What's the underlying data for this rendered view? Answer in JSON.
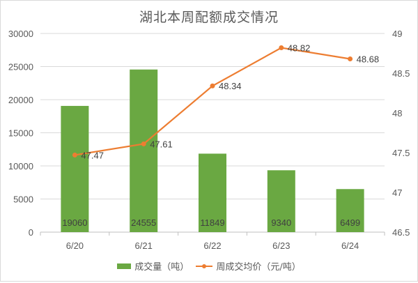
{
  "chart_data": {
    "type": "bar+line",
    "title": "湖北本周配额成交情况",
    "categories": [
      "6/20",
      "6/21",
      "6/22",
      "6/23",
      "6/24"
    ],
    "series": [
      {
        "name": "成交量（吨）",
        "type": "bar",
        "axis": "left",
        "color": "#6aa842",
        "values": [
          19060,
          24555,
          11849,
          9340,
          6499
        ]
      },
      {
        "name": "周成交均价（元/吨）",
        "type": "line",
        "axis": "right",
        "color": "#ed7d31",
        "values": [
          47.47,
          47.61,
          48.34,
          48.82,
          48.68
        ]
      }
    ],
    "left_axis": {
      "ylim": [
        0,
        30000
      ],
      "ticks": [
        0,
        5000,
        10000,
        15000,
        20000,
        25000,
        30000
      ]
    },
    "right_axis": {
      "ylim": [
        46.5,
        49
      ],
      "ticks": [
        46.5,
        47,
        47.5,
        48,
        48.5,
        49
      ]
    },
    "grid": true,
    "legend_position": "bottom"
  },
  "labels": {
    "title": "湖北本周配额成交情况",
    "left_ticks": [
      "30000",
      "25000",
      "20000",
      "15000",
      "10000",
      "5000",
      "0"
    ],
    "right_ticks": [
      "49",
      "48.5",
      "48",
      "47.5",
      "47",
      "46.5"
    ],
    "legend_bar": "成交量（吨）",
    "legend_line": "周成交均价（元/吨）"
  }
}
